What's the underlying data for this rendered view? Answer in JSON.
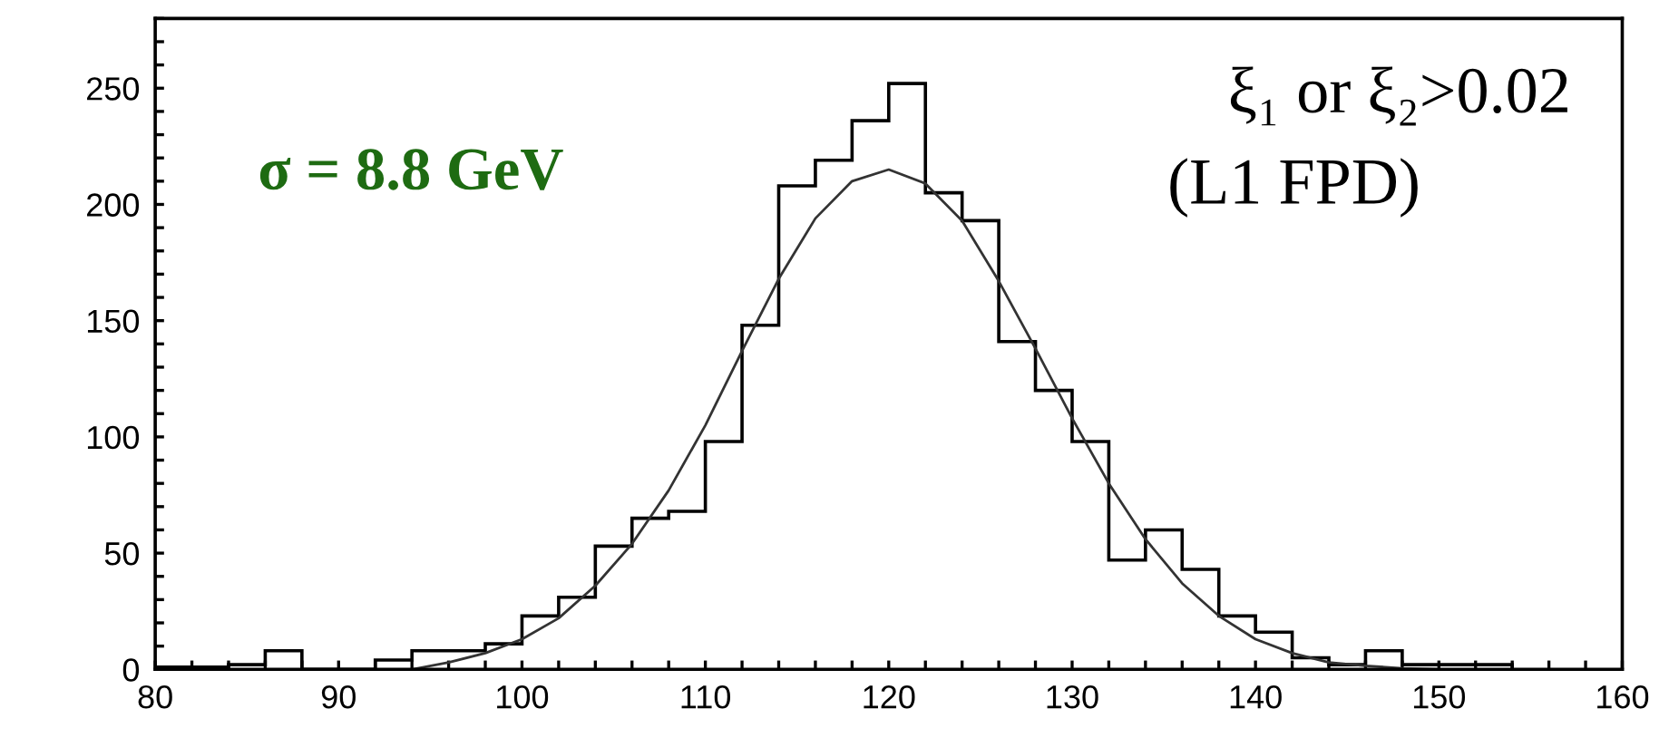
{
  "chart_data": {
    "type": "histogram",
    "series": [
      {
        "color": "#000000",
        "bins": [
          80,
          82,
          84,
          86,
          88,
          90,
          92,
          94,
          96,
          98,
          100,
          102,
          104,
          106,
          108,
          110,
          112,
          114,
          116,
          118,
          120,
          122,
          124,
          126,
          128,
          130,
          132,
          134,
          136,
          138,
          140,
          142,
          144,
          146,
          148,
          150,
          152,
          154
        ],
        "values": [
          1,
          1,
          2,
          8,
          0,
          0,
          4,
          8,
          8,
          11,
          23,
          31,
          53,
          65,
          68,
          98,
          148,
          208,
          219,
          236,
          252,
          205,
          193,
          141,
          120,
          98,
          47,
          60,
          43,
          23,
          16,
          5,
          2,
          8,
          2,
          2,
          2
        ]
      },
      {
        "type": "line",
        "color": "#333333",
        "x": [
          94,
          96,
          98,
          100,
          102,
          104,
          106,
          108,
          110,
          112,
          114,
          116,
          118,
          120,
          122,
          124,
          126,
          128,
          130,
          132,
          134,
          136,
          138,
          140,
          142,
          144,
          146,
          148,
          150
        ],
        "values": [
          0,
          3,
          7,
          13,
          22,
          36,
          54,
          77,
          105,
          137,
          168,
          194,
          210,
          215,
          209,
          193,
          167,
          138,
          108,
          80,
          56,
          37,
          23,
          13,
          7,
          3,
          1.5,
          0.5,
          0
        ]
      }
    ],
    "xlim": [
      80,
      160
    ],
    "ylim": [
      0,
      280
    ],
    "xticks": [
      80,
      {
        "value": 82,
        "label": null
      },
      {
        "value": 84,
        "label": null
      },
      {
        "value": 86,
        "label": null
      },
      {
        "value": 88,
        "label": null
      },
      90,
      {
        "value": 92,
        "label": null
      },
      {
        "value": 94,
        "label": null
      },
      {
        "value": 96,
        "label": null
      },
      {
        "value": 98,
        "label": null
      },
      100,
      {
        "value": 102,
        "label": null
      },
      {
        "value": 104,
        "label": null
      },
      {
        "value": 106,
        "label": null
      },
      {
        "value": 108,
        "label": null
      },
      110,
      {
        "value": 112,
        "label": null
      },
      {
        "value": 114,
        "label": null
      },
      {
        "value": 116,
        "label": null
      },
      {
        "value": 118,
        "label": null
      },
      120,
      {
        "value": 122,
        "label": null
      },
      {
        "value": 124,
        "label": null
      },
      {
        "value": 126,
        "label": null
      },
      {
        "value": 128,
        "label": null
      },
      130,
      {
        "value": 132,
        "label": null
      },
      {
        "value": 134,
        "label": null
      },
      {
        "value": 136,
        "label": null
      },
      {
        "value": 138,
        "label": null
      },
      140,
      {
        "value": 142,
        "label": null
      },
      {
        "value": 144,
        "label": null
      },
      {
        "value": 146,
        "label": null
      },
      {
        "value": 148,
        "label": null
      },
      150,
      {
        "value": 152,
        "label": null
      },
      {
        "value": 154,
        "label": null
      },
      {
        "value": 156,
        "label": null
      },
      {
        "value": 158,
        "label": null
      },
      160
    ],
    "yticks": [
      0,
      {
        "value": 10,
        "label": null
      },
      {
        "value": 20,
        "label": null
      },
      {
        "value": 30,
        "label": null
      },
      {
        "value": 40,
        "label": null
      },
      50,
      {
        "value": 60,
        "label": null
      },
      {
        "value": 70,
        "label": null
      },
      {
        "value": 80,
        "label": null
      },
      {
        "value": 90,
        "label": null
      },
      100,
      {
        "value": 110,
        "label": null
      },
      {
        "value": 120,
        "label": null
      },
      {
        "value": 130,
        "label": null
      },
      {
        "value": 140,
        "label": null
      },
      150,
      {
        "value": 160,
        "label": null
      },
      {
        "value": 170,
        "label": null
      },
      {
        "value": 180,
        "label": null
      },
      {
        "value": 190,
        "label": null
      },
      200,
      {
        "value": 210,
        "label": null
      },
      {
        "value": 220,
        "label": null
      },
      {
        "value": 230,
        "label": null
      },
      {
        "value": 240,
        "label": null
      },
      250,
      {
        "value": 260,
        "label": null
      },
      {
        "value": 270,
        "label": null
      },
      {
        "value": 280,
        "label": null
      }
    ],
    "grid": false,
    "annotations": [
      "σ = 8.8 GeV",
      "ξ₁ or ξ₂>0.02",
      "(L1 FPD)"
    ]
  }
}
